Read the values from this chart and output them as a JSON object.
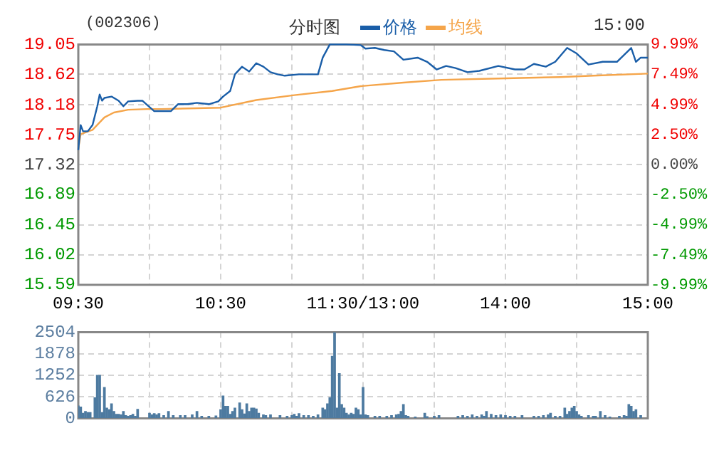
{
  "chart_data": [
    {
      "type": "line",
      "title": "(002306)",
      "subtitle": "分时图",
      "annotations": [
        "15:00"
      ],
      "legend": "top",
      "grid": true,
      "categories": [
        "09:30",
        null,
        null,
        null,
        null,
        null,
        null,
        null,
        null,
        null,
        null,
        null,
        null,
        null,
        null,
        null,
        null,
        null,
        null,
        null,
        null,
        null,
        null,
        null,
        null,
        null,
        null,
        null,
        null,
        null,
        null,
        null,
        null,
        null,
        null,
        null,
        null,
        null,
        null,
        null,
        null,
        null,
        null,
        null,
        null,
        null,
        null,
        null,
        null,
        null,
        null,
        null,
        null,
        null,
        null,
        null,
        null,
        null,
        null,
        null,
        "10:30",
        null,
        null,
        null,
        null,
        null,
        null,
        null,
        null,
        null,
        null,
        null,
        null,
        null,
        null,
        null,
        null,
        null,
        null,
        null,
        null,
        null,
        null,
        null,
        null,
        null,
        null,
        null,
        null,
        null,
        null,
        null,
        null,
        null,
        null,
        null,
        null,
        null,
        null,
        null,
        null,
        null,
        null,
        null,
        null,
        null,
        null,
        null,
        null,
        null,
        null,
        null,
        null,
        null,
        null,
        null,
        null,
        null,
        null,
        null,
        "11:30/13:00",
        null,
        null,
        null,
        null,
        null,
        null,
        null,
        null,
        null,
        null,
        null,
        null,
        null,
        null,
        null,
        null,
        null,
        null,
        null,
        null,
        null,
        null,
        null,
        null,
        null,
        null,
        null,
        null,
        null,
        null,
        null,
        null,
        null,
        null,
        null,
        null,
        null,
        null,
        null,
        null,
        null,
        null,
        null,
        null,
        null,
        null,
        null,
        null,
        null,
        null,
        null,
        null,
        null,
        null,
        null,
        null,
        null,
        null,
        null,
        "14:00",
        null,
        null,
        null,
        null,
        null,
        null,
        null,
        null,
        null,
        null,
        null,
        null,
        null,
        null,
        null,
        null,
        null,
        null,
        null,
        null,
        null,
        null,
        null,
        null,
        null,
        null,
        null,
        null,
        null,
        null,
        null,
        null,
        null,
        null,
        null,
        null,
        null,
        null,
        null,
        null,
        null,
        null,
        null,
        null,
        null,
        null,
        null,
        null,
        null,
        null,
        null,
        null,
        null,
        null,
        null,
        null,
        null,
        null,
        null,
        "15:00"
      ],
      "ylim": [
        15.59,
        19.05
      ],
      "yticks": [
        15.59,
        16.02,
        16.45,
        16.89,
        17.32,
        17.75,
        18.18,
        18.62,
        19.05
      ],
      "y2lim": [
        -9.99,
        9.99
      ],
      "y2ticks": [
        {
          "value": -9.99,
          "label": "-9.99%"
        },
        {
          "value": -7.49,
          "label": "-7.49%"
        },
        {
          "value": -4.99,
          "label": "-4.99%"
        },
        {
          "value": -2.5,
          "label": "-2.50%"
        },
        {
          "value": 0,
          "label": "0.00%"
        },
        {
          "value": 2.5,
          "label": "2.50%"
        },
        {
          "value": 4.99,
          "label": "4.99%"
        },
        {
          "value": 7.49,
          "label": "7.49%"
        },
        {
          "value": 9.99,
          "label": "9.99%"
        }
      ],
      "series": [
        {
          "name": "价格",
          "color": "#1a5ea8",
          "values": [
            17.53,
            17.89,
            17.8,
            null,
            17.8,
            null,
            17.89,
            null,
            18.16,
            18.33,
            18.24,
            18.28,
            null,
            null,
            18.3,
            null,
            null,
            18.24,
            null,
            18.16,
            null,
            18.23,
            null,
            null,
            null,
            18.24,
            null,
            18.24,
            null,
            18.18,
            null,
            null,
            18.09,
            null,
            null,
            null,
            18.09,
            null,
            null,
            18.09,
            null,
            null,
            18.19,
            null,
            null,
            null,
            18.19,
            null,
            null,
            null,
            18.21,
            null,
            null,
            null,
            null,
            18.19,
            null,
            null,
            null,
            18.23,
            null,
            18.3,
            null,
            null,
            18.38,
            null,
            18.62,
            null,
            null,
            18.73,
            null,
            null,
            18.66,
            null,
            null,
            18.78,
            null,
            null,
            18.73,
            null,
            null,
            18.65,
            null,
            null,
            18.62,
            null,
            null,
            18.6,
            null,
            null,
            null,
            null,
            null,
            18.62,
            null,
            null,
            null,
            null,
            18.62,
            null,
            null,
            18.62,
            null,
            18.86,
            null,
            null,
            19.05,
            null,
            null,
            null,
            null,
            null,
            null,
            19.05,
            null,
            null,
            null,
            null,
            null,
            19.04,
            null,
            18.99,
            null,
            null,
            null,
            19.0,
            null,
            null,
            null,
            18.97,
            null,
            null,
            null,
            18.95,
            null,
            null,
            null,
            18.83,
            null,
            null,
            null,
            null,
            null,
            18.86,
            null,
            null,
            null,
            18.8,
            null,
            null,
            null,
            18.69,
            null,
            null,
            null,
            18.74,
            null,
            null,
            null,
            18.71,
            null,
            null,
            null,
            null,
            18.65,
            null,
            null,
            null,
            null,
            18.67,
            null,
            null,
            null,
            null,
            null,
            null,
            null,
            18.74,
            null,
            null,
            null,
            null,
            null,
            null,
            18.69,
            null,
            null,
            null,
            18.69,
            null,
            null,
            null,
            18.77,
            null,
            null,
            null,
            null,
            18.73,
            null,
            null,
            null,
            18.8,
            null,
            null,
            null,
            null,
            19.0,
            null,
            null,
            null,
            18.92,
            null,
            null,
            null,
            null,
            18.76,
            null,
            null,
            null,
            null,
            null,
            18.8,
            null,
            null,
            null,
            null,
            null,
            18.8,
            null,
            null,
            null,
            null,
            null,
            19.0,
            null,
            18.8,
            null,
            18.86,
            null,
            null,
            18.86
          ]
        },
        {
          "name": "均线",
          "color": "#f5a54a",
          "values": [
            17.55,
            17.76,
            null,
            null,
            null,
            null,
            17.82,
            null,
            null,
            null,
            null,
            18.0,
            null,
            null,
            null,
            18.07,
            null,
            null,
            null,
            null,
            null,
            18.11,
            null,
            null,
            null,
            null,
            null,
            null,
            null,
            18.12,
            null,
            null,
            null,
            null,
            null,
            18.12,
            null,
            null,
            null,
            null,
            null,
            null,
            null,
            null,
            null,
            null,
            null,
            null,
            null,
            null,
            null,
            null,
            null,
            null,
            null,
            null,
            null,
            null,
            null,
            null,
            18.14,
            null,
            null,
            null,
            null,
            null,
            null,
            null,
            null,
            null,
            null,
            null,
            null,
            null,
            null,
            18.25,
            null,
            null,
            null,
            null,
            null,
            null,
            null,
            null,
            null,
            null,
            null,
            null,
            null,
            null,
            null,
            18.32,
            null,
            null,
            null,
            null,
            null,
            null,
            null,
            null,
            null,
            null,
            null,
            null,
            null,
            null,
            null,
            18.38,
            null,
            null,
            null,
            null,
            null,
            null,
            null,
            null,
            null,
            null,
            null,
            18.45,
            null,
            null,
            null,
            null,
            null,
            null,
            null,
            null,
            null,
            null,
            null,
            null,
            null,
            null,
            null,
            null,
            null,
            18.5,
            null,
            null,
            null,
            null,
            null,
            null,
            null,
            null,
            null,
            null,
            null,
            null,
            null,
            null,
            null,
            18.54,
            null,
            null,
            null,
            null,
            null,
            null,
            null,
            null,
            null,
            null,
            null,
            null,
            null,
            null,
            null,
            null,
            null,
            null,
            null,
            null,
            null,
            null,
            null,
            18.56,
            null,
            null,
            null,
            null,
            null,
            null,
            null,
            null,
            null,
            null,
            null,
            null,
            null,
            null,
            null,
            null,
            null,
            null,
            null,
            null,
            null,
            null,
            null,
            null,
            null,
            18.58,
            null,
            null,
            null,
            null,
            null,
            null,
            null,
            null,
            null,
            null,
            null,
            null,
            null,
            18.6,
            null,
            null,
            null,
            null,
            null,
            null,
            null,
            null,
            null,
            null,
            null,
            null,
            null,
            null,
            null,
            null,
            null,
            null,
            null,
            null,
            null,
            null,
            18.63
          ]
        }
      ]
    },
    {
      "type": "bar",
      "color": "#4d7aa0",
      "grid": true,
      "tick_labels": "y",
      "categories": [
        null,
        null,
        null,
        null,
        null,
        null,
        null,
        null,
        null,
        null,
        null,
        null,
        null,
        null,
        null,
        null,
        null,
        null,
        null,
        null,
        null,
        null,
        null,
        null,
        null,
        null,
        null,
        null,
        null,
        null,
        null,
        null,
        null,
        null,
        null,
        null,
        null,
        null,
        null,
        null,
        null,
        null,
        null,
        null,
        null,
        null,
        null,
        null,
        null,
        null,
        null,
        null,
        null,
        null,
        null,
        null,
        null,
        null,
        null,
        null,
        null,
        null,
        null,
        null,
        null,
        null,
        null,
        null,
        null,
        null,
        null,
        null,
        null,
        null,
        null,
        null,
        null,
        null,
        null,
        null,
        null,
        null,
        null,
        null,
        null,
        null,
        null,
        null,
        null,
        null,
        null,
        null,
        null,
        null,
        null,
        null,
        null,
        null,
        null,
        null,
        null,
        null,
        null,
        null,
        null,
        null,
        null,
        null,
        null,
        null,
        null,
        null,
        null,
        null,
        null,
        null,
        null,
        null,
        null,
        null,
        null,
        null,
        null,
        null,
        null,
        null,
        null,
        null,
        null,
        null,
        null,
        null,
        null,
        null,
        null,
        null,
        null,
        null,
        null,
        null,
        null,
        null,
        null,
        null,
        null,
        null,
        null,
        null,
        null,
        null,
        null,
        null,
        null,
        null,
        null,
        null,
        null,
        null,
        null,
        null,
        null,
        null,
        null,
        null,
        null,
        null,
        null,
        null,
        null,
        null,
        null,
        null,
        null,
        null,
        null,
        null,
        null,
        null,
        null,
        null,
        null,
        null,
        null,
        null,
        null,
        null,
        null,
        null,
        null,
        null,
        null,
        null,
        null,
        null,
        null,
        null,
        null,
        null,
        null,
        null,
        null,
        null,
        null,
        null,
        null,
        null,
        null,
        null,
        null,
        null,
        null,
        null,
        null,
        null,
        null,
        null,
        null,
        null,
        null,
        null,
        null,
        null,
        null,
        null,
        null,
        null,
        null,
        null,
        null,
        null,
        null,
        null,
        null,
        null,
        null,
        null,
        null,
        null,
        null,
        null,
        null
      ],
      "ylim": [
        0,
        2504
      ],
      "yticks": [
        0,
        626,
        1252,
        1878,
        2504
      ],
      "values": [
        360,
        330,
        150,
        200,
        170,
        170,
        null,
        600,
        1250,
        1250,
        170,
        900,
        300,
        250,
        420,
        200,
        120,
        120,
        100,
        200,
        80,
        60,
        80,
        120,
        60,
        260,
        null,
        null,
        null,
        null,
        150,
        100,
        140,
        100,
        140,
        null,
        80,
        null,
        200,
        null,
        80,
        null,
        null,
        80,
        null,
        80,
        null,
        null,
        100,
        null,
        200,
        null,
        60,
        null,
        null,
        60,
        null,
        null,
        70,
        null,
        250,
        650,
        350,
        350,
        120,
        200,
        300,
        null,
        450,
        250,
        130,
        420,
        200,
        300,
        300,
        270,
        150,
        null,
        100,
        80,
        null,
        100,
        null,
        null,
        null,
        80,
        null,
        null,
        60,
        null,
        80,
        120,
        60,
        140,
        null,
        80,
        null,
        80,
        null,
        60,
        null,
        100,
        null,
        300,
        250,
        420,
        600,
        1800,
        2500,
        300,
        1300,
        400,
        300,
        150,
        100,
        150,
        120,
        300,
        250,
        100,
        900,
        100,
        80,
        null,
        null,
        60,
        null,
        60,
        null,
        null,
        60,
        null,
        80,
        null,
        100,
        120,
        200,
        400,
        80,
        60,
        null,
        null,
        40,
        null,
        null,
        null,
        150,
        50,
        null,
        null,
        60,
        null,
        80,
        null,
        null,
        null,
        null,
        null,
        null,
        null,
        60,
        null,
        80,
        null,
        60,
        null,
        100,
        null,
        60,
        null,
        100,
        60,
        200,
        null,
        120,
        null,
        80,
        null,
        100,
        null,
        80,
        null,
        60,
        null,
        60,
        null,
        null,
        80,
        null,
        null,
        null,
        null,
        60,
        null,
        60,
        null,
        80,
        null,
        100,
        150,
        null,
        60,
        null,
        60,
        null,
        300,
        120,
        200,
        300,
        350,
        200,
        100,
        60,
        null,
        null,
        80,
        null,
        60,
        60,
        null,
        200,
        null,
        80,
        null,
        40,
        null,
        null,
        null,
        60,
        null,
        80,
        60,
        400,
        350,
        200,
        250,
        null,
        80,
        null,
        null,
        null
      ]
    }
  ]
}
